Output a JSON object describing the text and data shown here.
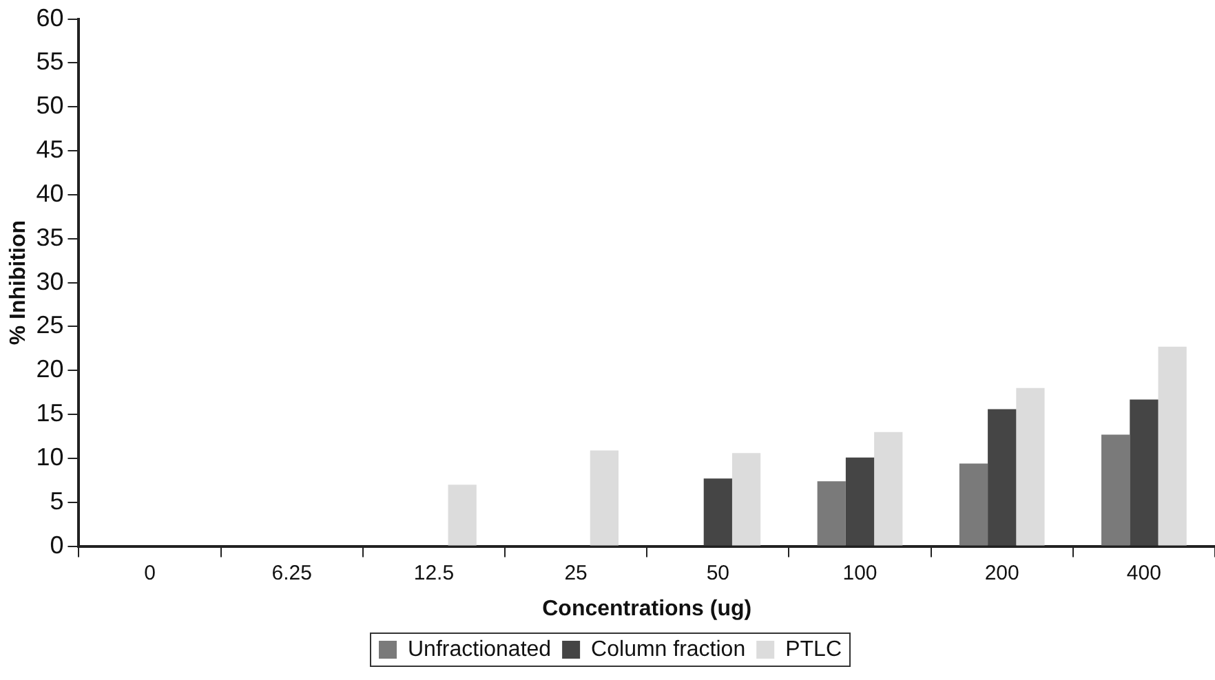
{
  "chart_data": {
    "type": "bar",
    "xlabel": "Concentrations (ug)",
    "ylabel": "% Inhibition",
    "categories": [
      "0",
      "6.25",
      "12.5",
      "25",
      "50",
      "100",
      "200",
      "400"
    ],
    "series": [
      {
        "name": "Unfractionated",
        "color": "#7a7a7a",
        "values": [
          0,
          0,
          0,
          0,
          0,
          7.4,
          9.4,
          12.7
        ]
      },
      {
        "name": "Column fraction",
        "color": "#454545",
        "values": [
          0,
          0,
          0,
          0,
          7.7,
          10.1,
          15.6,
          16.7
        ]
      },
      {
        "name": "PTLC",
        "color": "#dcdcdc",
        "values": [
          0,
          0,
          7,
          10.9,
          10.6,
          13,
          18,
          22.7
        ]
      }
    ],
    "ylim": [
      0,
      60
    ],
    "yticks": [
      0,
      5,
      10,
      15,
      20,
      25,
      30,
      35,
      40,
      45,
      50,
      55,
      60
    ],
    "grid": false,
    "legend": "bottom"
  }
}
